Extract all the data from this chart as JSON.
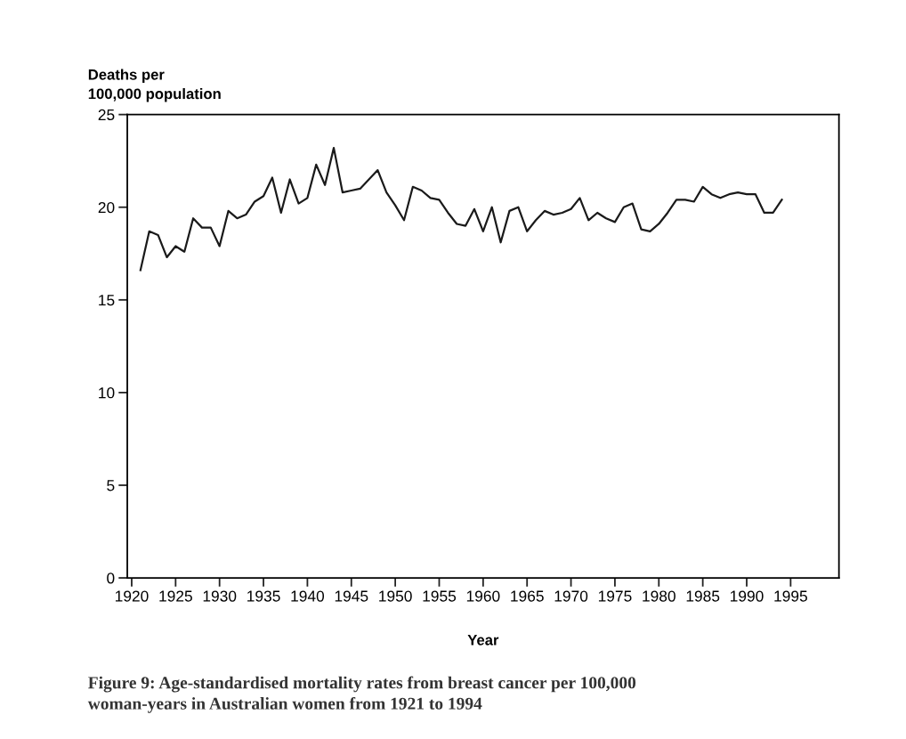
{
  "chart_data": {
    "type": "line",
    "ylabel": "Deaths per\n100,000 population",
    "xlabel": "Year",
    "annotations": [
      "Figure 9: Age-standardised mortality rates from breast cancer per 100,000\nwoman-years in Australian women from 1921 to 1994"
    ],
    "x": [
      1921,
      1922,
      1923,
      1924,
      1925,
      1926,
      1927,
      1928,
      1929,
      1930,
      1931,
      1932,
      1933,
      1934,
      1935,
      1936,
      1937,
      1938,
      1939,
      1940,
      1941,
      1942,
      1943,
      1944,
      1945,
      1946,
      1947,
      1948,
      1949,
      1950,
      1951,
      1952,
      1953,
      1954,
      1955,
      1956,
      1957,
      1958,
      1959,
      1960,
      1961,
      1962,
      1963,
      1964,
      1965,
      1966,
      1967,
      1968,
      1969,
      1970,
      1971,
      1972,
      1973,
      1974,
      1975,
      1976,
      1977,
      1978,
      1979,
      1980,
      1981,
      1982,
      1983,
      1984,
      1985,
      1986,
      1987,
      1988,
      1989,
      1990,
      1991,
      1992,
      1993,
      1994
    ],
    "series": [
      {
        "color": "#1a1a1a",
        "values": [
          16.6,
          18.7,
          18.5,
          17.3,
          17.9,
          17.6,
          19.4,
          18.9,
          18.9,
          17.9,
          19.8,
          19.4,
          19.6,
          20.3,
          20.6,
          21.6,
          19.7,
          21.5,
          20.2,
          20.5,
          22.3,
          21.2,
          23.2,
          20.8,
          20.9,
          21.0,
          21.5,
          22.0,
          20.8,
          20.1,
          19.3,
          21.1,
          20.9,
          20.5,
          20.4,
          19.7,
          19.1,
          19.0,
          19.9,
          18.7,
          20.0,
          18.1,
          19.8,
          20.0,
          18.7,
          19.3,
          19.8,
          19.6,
          19.7,
          19.9,
          20.5,
          19.3,
          19.7,
          19.4,
          19.2,
          20.0,
          20.2,
          18.8,
          18.7,
          19.1,
          19.7,
          20.4,
          20.4,
          20.3,
          21.1,
          20.7,
          20.5,
          20.7,
          20.8,
          20.7,
          20.7,
          19.7,
          19.7,
          20.4
        ]
      }
    ],
    "xlim": [
      1919.5,
      2000.5
    ],
    "xticks": [
      1920,
      1925,
      1930,
      1935,
      1940,
      1945,
      1950,
      1955,
      1960,
      1965,
      1970,
      1975,
      1980,
      1985,
      1990,
      1995
    ],
    "ylim": [
      0,
      25
    ],
    "yticks": [
      0,
      5,
      10,
      15,
      20,
      25
    ],
    "marker": "none",
    "line_style": "solid"
  }
}
